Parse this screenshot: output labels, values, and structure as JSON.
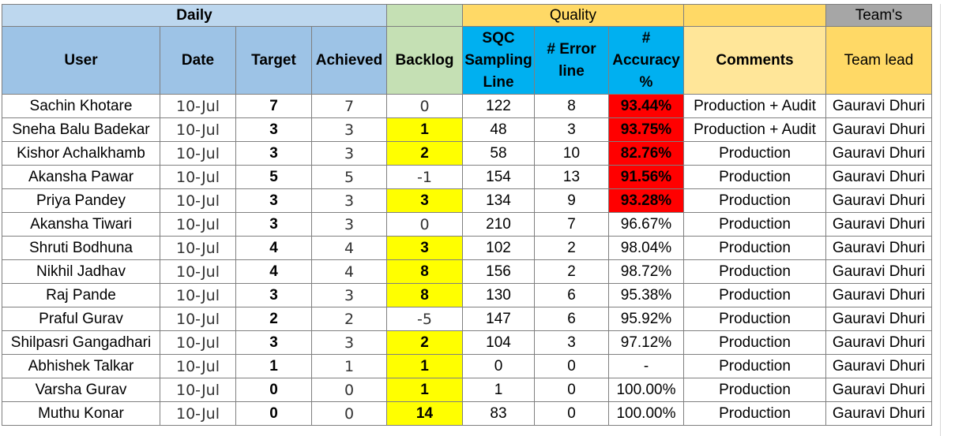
{
  "group_headers": {
    "daily": "Daily",
    "quality": "Quality",
    "teams": "Team's"
  },
  "columns": {
    "user": "User",
    "date": "Date",
    "target": "Target",
    "achieved": "Achieved",
    "backlog": "Backlog",
    "sqc": "SQC Sampling Line",
    "error": "# Error line",
    "accuracy": "# Accuracy %",
    "comments": "Comments",
    "team_lead": "Team lead"
  },
  "rows": [
    {
      "user": "Sachin Khotare",
      "date": "10-Jul",
      "target": "7",
      "achieved": "7",
      "backlog": "0",
      "sqc": "122",
      "error": "8",
      "accuracy": "93.44%",
      "comments": "Production + Audit",
      "team_lead": "Gauravi Dhuri"
    },
    {
      "user": "Sneha Balu Badekar",
      "date": "10-Jul",
      "target": "3",
      "achieved": "3",
      "backlog": "1",
      "sqc": "48",
      "error": "3",
      "accuracy": "93.75%",
      "comments": "Production + Audit",
      "team_lead": "Gauravi Dhuri"
    },
    {
      "user": "Kishor Achalkhamb",
      "date": "10-Jul",
      "target": "3",
      "achieved": "3",
      "backlog": "2",
      "sqc": "58",
      "error": "10",
      "accuracy": "82.76%",
      "comments": "Production",
      "team_lead": "Gauravi Dhuri"
    },
    {
      "user": "Akansha Pawar",
      "date": "10-Jul",
      "target": "5",
      "achieved": "5",
      "backlog": "-1",
      "sqc": "154",
      "error": "13",
      "accuracy": "91.56%",
      "comments": "Production",
      "team_lead": "Gauravi Dhuri"
    },
    {
      "user": "Priya Pandey",
      "date": "10-Jul",
      "target": "3",
      "achieved": "3",
      "backlog": "3",
      "sqc": "134",
      "error": "9",
      "accuracy": "93.28%",
      "comments": "Production",
      "team_lead": "Gauravi Dhuri"
    },
    {
      "user": "Akansha Tiwari",
      "date": "10-Jul",
      "target": "3",
      "achieved": "3",
      "backlog": "0",
      "sqc": "210",
      "error": "7",
      "accuracy": "96.67%",
      "comments": "Production",
      "team_lead": "Gauravi Dhuri"
    },
    {
      "user": "Shruti Bodhuna",
      "date": "10-Jul",
      "target": "4",
      "achieved": "4",
      "backlog": "3",
      "sqc": "102",
      "error": "2",
      "accuracy": "98.04%",
      "comments": "Production",
      "team_lead": "Gauravi Dhuri"
    },
    {
      "user": "Nikhil Jadhav",
      "date": "10-Jul",
      "target": "4",
      "achieved": "4",
      "backlog": "8",
      "sqc": "156",
      "error": "2",
      "accuracy": "98.72%",
      "comments": "Production",
      "team_lead": "Gauravi Dhuri"
    },
    {
      "user": "Raj Pande",
      "date": "10-Jul",
      "target": "3",
      "achieved": "3",
      "backlog": "8",
      "sqc": "130",
      "error": "6",
      "accuracy": "95.38%",
      "comments": "Production",
      "team_lead": "Gauravi Dhuri"
    },
    {
      "user": "Praful Gurav",
      "date": "10-Jul",
      "target": "2",
      "achieved": "2",
      "backlog": "-5",
      "sqc": "147",
      "error": "6",
      "accuracy": "95.92%",
      "comments": "Production",
      "team_lead": "Gauravi Dhuri"
    },
    {
      "user": "Shilpasri Gangadhari",
      "date": "10-Jul",
      "target": "3",
      "achieved": "3",
      "backlog": "2",
      "sqc": "104",
      "error": "3",
      "accuracy": "97.12%",
      "comments": "Production",
      "team_lead": "Gauravi Dhuri"
    },
    {
      "user": "Abhishek Talkar",
      "date": "10-Jul",
      "target": "1",
      "achieved": "1",
      "backlog": "1",
      "sqc": "0",
      "error": "0",
      "accuracy": "-",
      "comments": "Production",
      "team_lead": "Gauravi Dhuri"
    },
    {
      "user": "Varsha Gurav",
      "date": "10-Jul",
      "target": "0",
      "achieved": "0",
      "backlog": "1",
      "sqc": "1",
      "error": "0",
      "accuracy": "100.00%",
      "comments": "Production",
      "team_lead": "Gauravi Dhuri"
    },
    {
      "user": "Muthu Konar",
      "date": "10-Jul",
      "target": "0",
      "achieved": "0",
      "backlog": "14",
      "sqc": "83",
      "error": "0",
      "accuracy": "100.00%",
      "comments": "Production",
      "team_lead": "Gauravi Dhuri"
    }
  ],
  "colors": {
    "backlog_positive_highlight": "#ffff00",
    "accuracy_low_highlight": "#ff0000",
    "daily_header": "#9dc3e6",
    "backlog_header": "#c5e0b4",
    "quality_header": "#ffd966",
    "sqc_header": "#00b0f0",
    "team_header": "#a6a6a6"
  }
}
